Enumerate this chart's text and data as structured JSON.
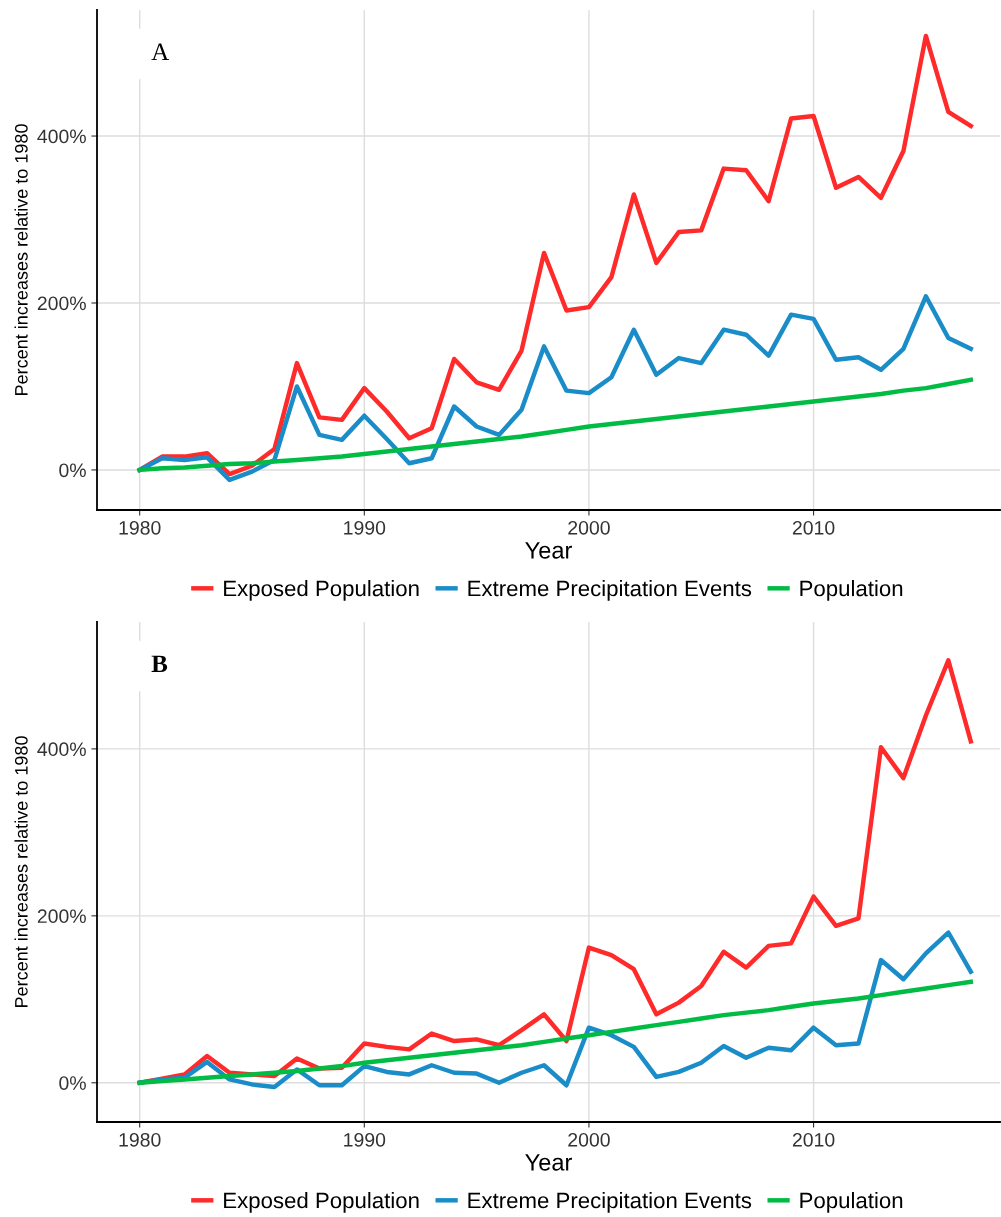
{
  "chart_data": [
    {
      "type": "line",
      "xlabel": "Year",
      "ylabel": "Percent increases relative to 1980",
      "annotations": [
        "A"
      ],
      "x": [
        1980,
        1981,
        1982,
        1983,
        1984,
        1985,
        1986,
        1987,
        1988,
        1989,
        1990,
        1991,
        1992,
        1993,
        1994,
        1995,
        1996,
        1997,
        1998,
        1999,
        2000,
        2001,
        2002,
        2003,
        2004,
        2005,
        2006,
        2007,
        2008,
        2009,
        2010,
        2011,
        2012,
        2013,
        2014,
        2015,
        2016,
        2017
      ],
      "series": [
        {
          "name": "Exposed Population",
          "color": "#ff2a2a",
          "values": [
            0,
            16,
            16,
            20,
            -5,
            5,
            25,
            128,
            63,
            60,
            98,
            70,
            38,
            50,
            133,
            105,
            96,
            143,
            260,
            191,
            195,
            231,
            330,
            248,
            285,
            287,
            361,
            359,
            322,
            421,
            424,
            338,
            351,
            326,
            382,
            520,
            429,
            412
          ]
        },
        {
          "name": "Extreme Precipitation Events",
          "color": "#1a8cc8",
          "values": [
            0,
            14,
            12,
            15,
            -12,
            -2,
            12,
            100,
            42,
            36,
            65,
            37,
            8,
            14,
            76,
            52,
            42,
            72,
            148,
            95,
            92,
            111,
            168,
            114,
            134,
            128,
            168,
            162,
            137,
            186,
            181,
            132,
            135,
            120,
            145,
            208,
            158,
            145
          ]
        },
        {
          "name": "Population",
          "color": "#00bb44",
          "values": [
            0,
            2,
            3,
            5,
            7,
            8,
            10,
            12,
            14,
            16,
            19,
            22,
            25,
            28,
            31,
            34,
            37,
            40,
            44,
            48,
            52,
            55,
            58,
            61,
            64,
            67,
            70,
            73,
            76,
            79,
            82,
            85,
            88,
            91,
            95,
            98,
            103,
            108
          ]
        }
      ],
      "xlim": [
        1978.1,
        2018.3
      ],
      "xticks": [
        1980,
        1990,
        2000,
        2010
      ],
      "ylim": [
        -48,
        551
      ],
      "yticks": [
        {
          "value": 0,
          "label": "0%"
        },
        {
          "value": 200,
          "label": "200%"
        },
        {
          "value": 400,
          "label": "400%"
        }
      ],
      "grid": true,
      "legend": "bottom",
      "line_style": "solid"
    },
    {
      "type": "line",
      "xlabel": "Year",
      "ylabel": "Percent increases relative to 1980",
      "annotations": [
        "B"
      ],
      "x": [
        1980,
        1981,
        1982,
        1983,
        1984,
        1985,
        1986,
        1987,
        1988,
        1989,
        1990,
        1991,
        1992,
        1993,
        1994,
        1995,
        1996,
        1997,
        1998,
        1999,
        2000,
        2001,
        2002,
        2003,
        2004,
        2005,
        2006,
        2007,
        2008,
        2009,
        2010,
        2011,
        2012,
        2013,
        2014,
        2015,
        2016,
        2017
      ],
      "series": [
        {
          "name": "Exposed Population",
          "color": "#ff2a2a",
          "values": [
            0,
            5,
            10,
            32,
            12,
            10,
            8,
            29,
            17,
            18,
            47,
            43,
            40,
            59,
            50,
            52,
            45,
            63,
            82,
            50,
            162,
            153,
            136,
            82,
            96,
            116,
            157,
            138,
            164,
            167,
            223,
            188,
            197,
            402,
            365,
            440,
            506,
            409
          ]
        },
        {
          "name": "Extreme Precipitation Events",
          "color": "#1a8cc8",
          "values": [
            0,
            4,
            6,
            25,
            4,
            -2,
            -5,
            16,
            -3,
            -3,
            20,
            13,
            10,
            21,
            12,
            11,
            0,
            12,
            21,
            -3,
            66,
            57,
            43,
            7,
            13,
            24,
            44,
            30,
            42,
            39,
            66,
            45,
            47,
            147,
            124,
            155,
            180,
            133
          ]
        },
        {
          "name": "Population",
          "color": "#00bb44",
          "values": [
            0,
            2,
            4,
            6,
            8,
            10,
            12,
            14,
            17,
            20,
            24,
            27,
            30,
            33,
            36,
            39,
            42,
            45,
            49,
            53,
            57,
            61,
            65,
            69,
            73,
            77,
            81,
            84,
            87,
            91,
            95,
            98,
            101,
            105,
            109,
            113,
            117,
            121
          ]
        }
      ],
      "xlim": [
        1978.1,
        2018.3
      ],
      "xticks": [
        1980,
        1990,
        2000,
        2010
      ],
      "ylim": [
        -47,
        552
      ],
      "yticks": [
        {
          "value": 0,
          "label": "0%"
        },
        {
          "value": 200,
          "label": "200%"
        },
        {
          "value": 400,
          "label": "400%"
        }
      ],
      "grid": true,
      "legend": "bottom",
      "line_style": "solid"
    }
  ]
}
